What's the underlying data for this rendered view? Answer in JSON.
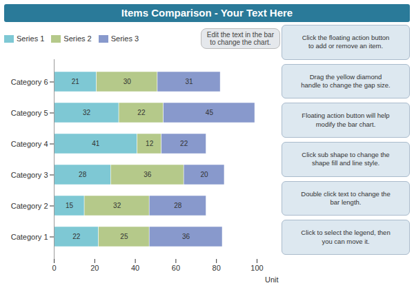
{
  "chart_data": {
    "type": "bar",
    "orientation": "horizontal",
    "stacked": true,
    "data_labels": true,
    "grid": false,
    "title": "Items Comparison - Your Text Here",
    "xlabel": "Unit",
    "categories": [
      "Category 1",
      "Category 2",
      "Category 3",
      "Category 4",
      "Category 5",
      "Category 6"
    ],
    "series": [
      {
        "name": "Series 1",
        "color": "#7ec8d4",
        "values": [
          22,
          15,
          28,
          41,
          32,
          21
        ]
      },
      {
        "name": "Series 2",
        "color": "#b5c98a",
        "values": [
          25,
          32,
          36,
          12,
          22,
          30
        ]
      },
      {
        "name": "Series 3",
        "color": "#8899cc",
        "values": [
          36,
          28,
          20,
          22,
          45,
          31
        ]
      }
    ],
    "xlim": [
      0,
      100
    ],
    "xticks": [
      0,
      20,
      40,
      60,
      80,
      100
    ],
    "annotations": [
      "Edit the text in the bar\nto change the chart.",
      "Click the floating action button\nto add or remove an item.",
      "Drag the yellow diamond\nhandle to change the gap size.",
      "Floating action button will help\nmodify the bar chart.",
      "Click sub shape to change the\nshape fill and line style.",
      "Double click text to change the\nbar length.",
      "Click to select the legend, then\nyou can move it."
    ]
  }
}
